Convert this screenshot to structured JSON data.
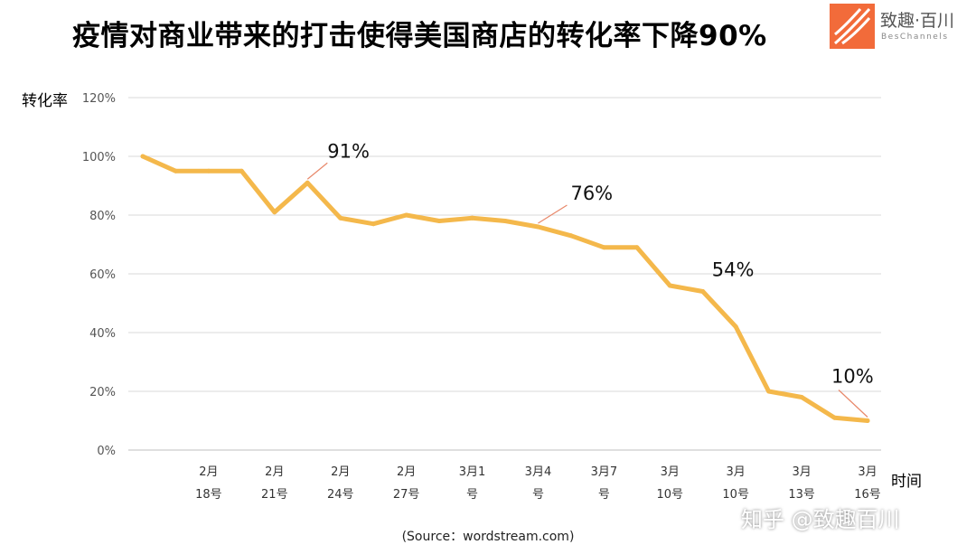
{
  "title": "疫情对商业带来的打击使得美国商店的转化率下降90%",
  "logo": {
    "name": "致趣·百川",
    "subtitle": "BesChannels"
  },
  "watermark": "知乎 @致趣百川",
  "source": "(Source：wordstream.com)",
  "colors": {
    "line": "#F4B84B",
    "callout": "#E8886A",
    "grid": "#D9D9D9",
    "logo": "#F26B3A"
  },
  "chart_data": {
    "type": "line",
    "title": "疫情对商业带来的打击使得美国商店的转化率下降90%",
    "xlabel": "时间",
    "ylabel": "转化率",
    "ylim": [
      0,
      120
    ],
    "yticks": [
      0,
      20,
      40,
      60,
      80,
      100,
      120
    ],
    "ytick_labels": [
      "0%",
      "20%",
      "40%",
      "60%",
      "80%",
      "100%",
      "120%"
    ],
    "grid": true,
    "x_tick_labels": [
      {
        "index": 2,
        "lines": [
          "2月",
          "18号"
        ]
      },
      {
        "index": 4,
        "lines": [
          "2月",
          "21号"
        ]
      },
      {
        "index": 6,
        "lines": [
          "2月",
          "24号"
        ]
      },
      {
        "index": 8,
        "lines": [
          "2月",
          "27号"
        ]
      },
      {
        "index": 10,
        "lines": [
          "3月1",
          "号"
        ]
      },
      {
        "index": 12,
        "lines": [
          "3月4",
          "号"
        ]
      },
      {
        "index": 14,
        "lines": [
          "3月7",
          "号"
        ]
      },
      {
        "index": 16,
        "lines": [
          "3月",
          "10号"
        ]
      },
      {
        "index": 18,
        "lines": [
          "3月",
          "10号"
        ]
      },
      {
        "index": 20,
        "lines": [
          "3月",
          "13号"
        ]
      },
      {
        "index": 22,
        "lines": [
          "3月",
          "16号"
        ]
      }
    ],
    "series": [
      {
        "values": [
          100,
          95,
          95,
          95,
          81,
          91,
          79,
          77,
          80,
          78,
          79,
          78,
          76,
          73,
          69,
          69,
          56,
          54,
          42,
          20,
          18,
          11,
          10
        ]
      }
    ],
    "annotations": [
      {
        "text": "91%",
        "index": 5
      },
      {
        "text": "76%",
        "index": 12
      },
      {
        "text": "54%",
        "index": 17
      },
      {
        "text": "10%",
        "index": 22
      }
    ]
  }
}
